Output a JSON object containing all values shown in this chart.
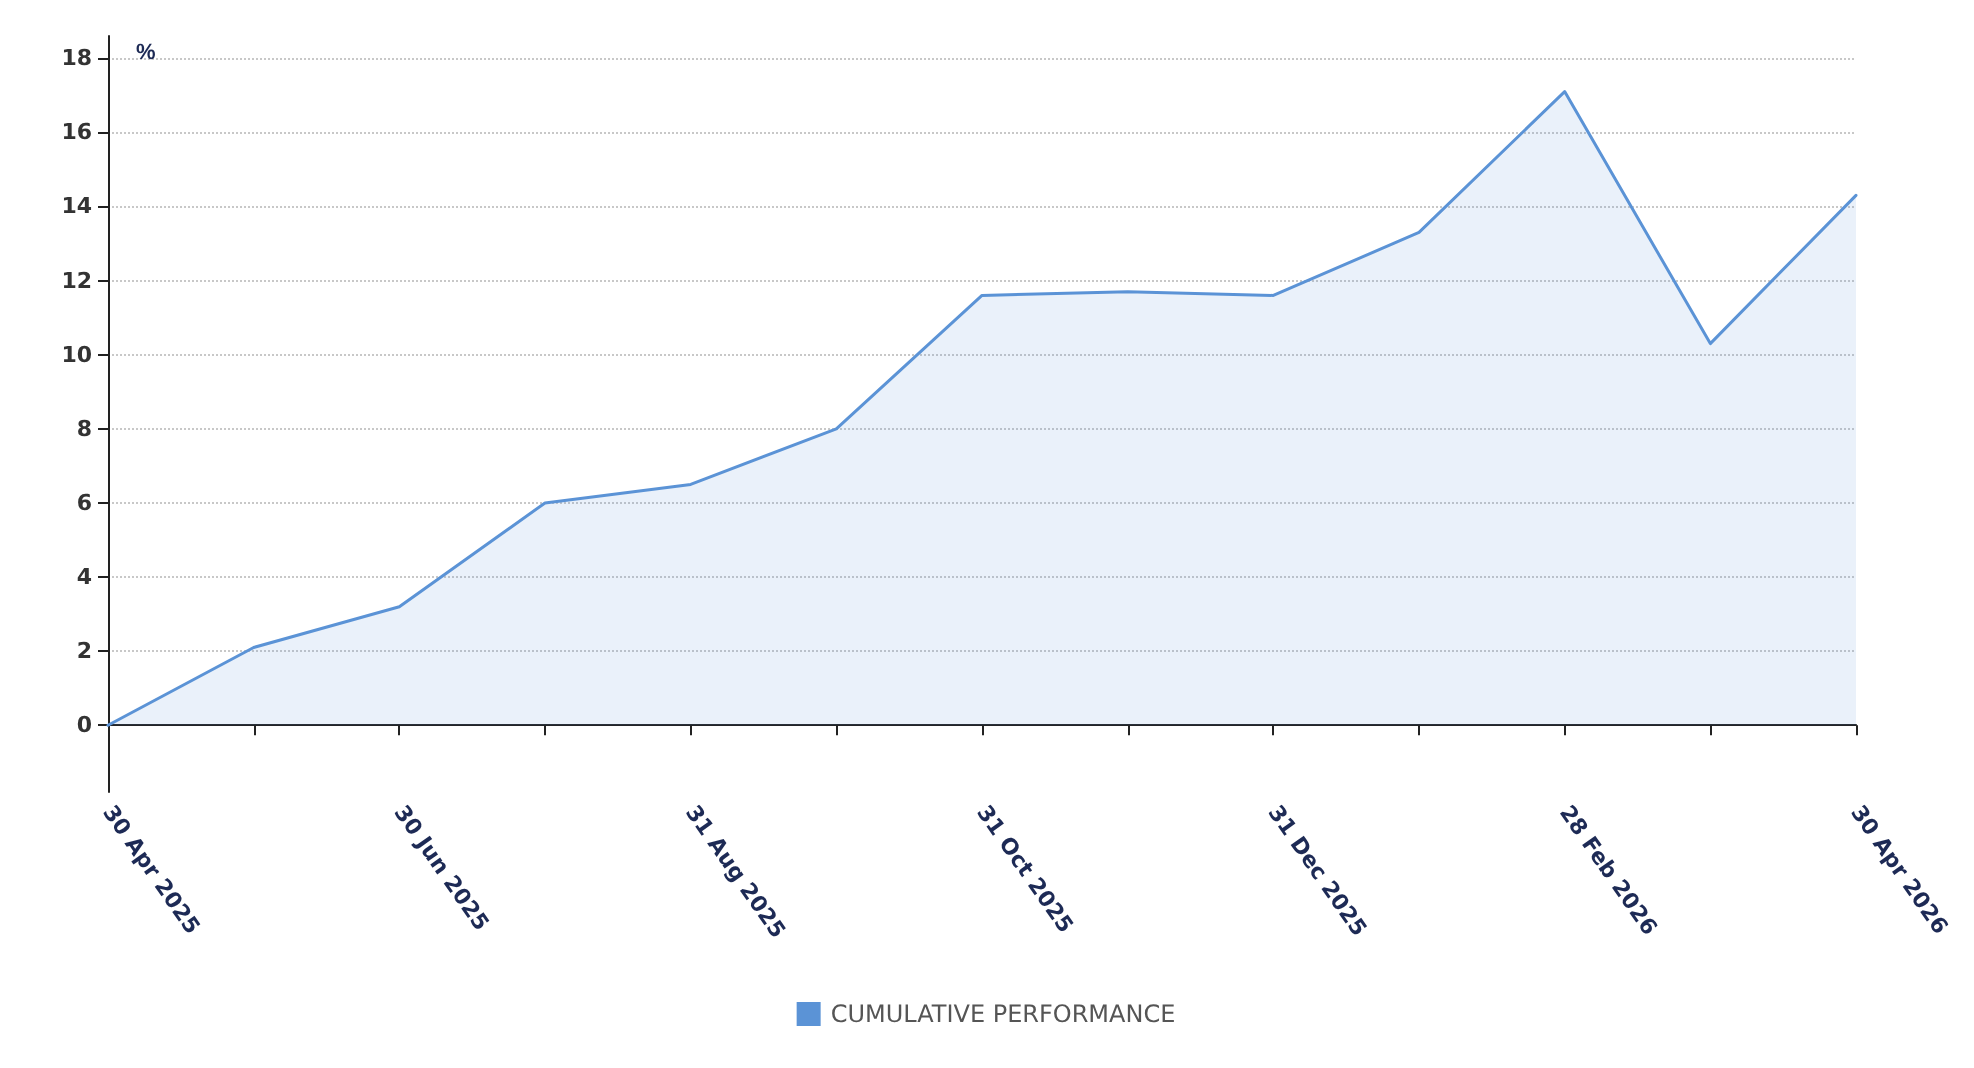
{
  "chart_data": {
    "type": "area",
    "ylabel": "%",
    "categories": [
      "30 Apr 2025",
      null,
      "30 Jun 2025",
      null,
      "31 Aug 2025",
      null,
      "31 Oct 2025",
      null,
      "31 Dec 2025",
      null,
      "28 Feb 2026",
      null,
      "30 Apr 2026"
    ],
    "series": [
      {
        "name": "CUMULATIVE PERFORMANCE",
        "color": "#5b93d6",
        "values": [
          0,
          2.1,
          3.2,
          6.0,
          6.5,
          8.0,
          11.6,
          11.7,
          11.6,
          13.3,
          17.1,
          10.3,
          14.3
        ]
      }
    ],
    "ylim": [
      -1.8,
      18.6
    ],
    "yticks": [
      0,
      2,
      4,
      6,
      8,
      10,
      12,
      14,
      16,
      18
    ],
    "grid": "y",
    "legend": "bottom",
    "marker": "none",
    "line_style": "solid"
  }
}
